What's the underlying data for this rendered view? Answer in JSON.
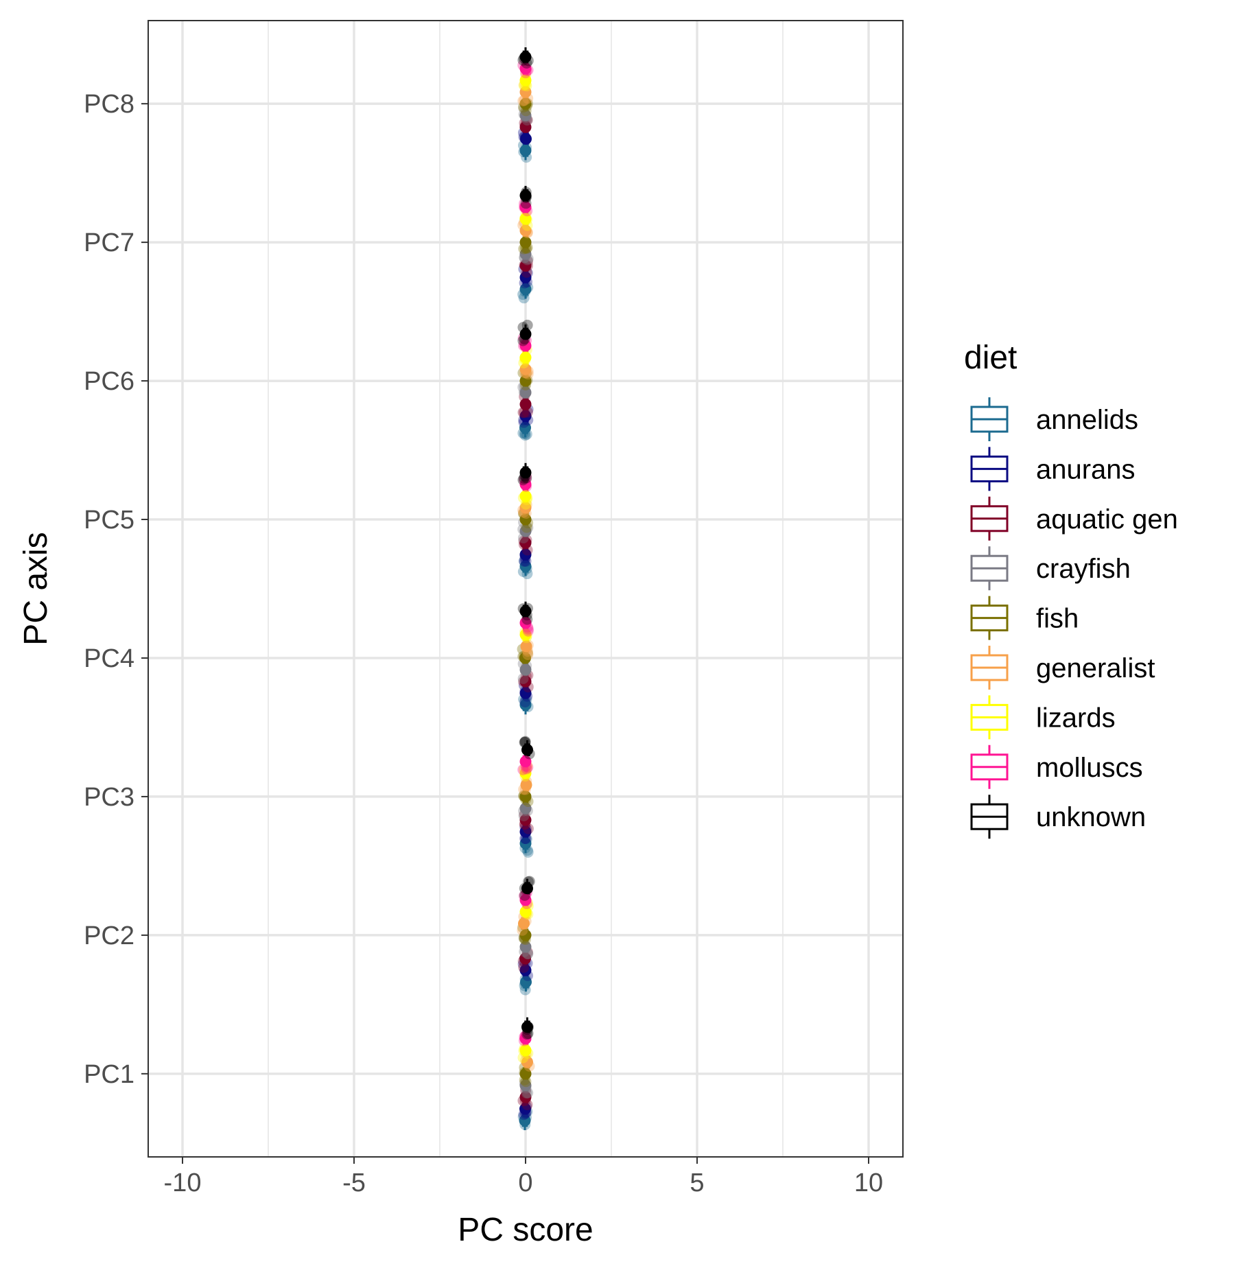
{
  "chart_data": {
    "type": "boxplot",
    "xlabel": "PC score",
    "ylabel": "PC axis",
    "xlim": [
      -11,
      11
    ],
    "xticks": [
      -10,
      -5,
      0,
      5,
      10
    ],
    "xtick_labels": [
      "-10",
      "-5",
      "0",
      "5",
      "10"
    ],
    "categories": [
      "PC1",
      "PC2",
      "PC3",
      "PC4",
      "PC5",
      "PC6",
      "PC7",
      "PC8"
    ],
    "grid": true,
    "legend": {
      "title": "diet",
      "placement": "right",
      "entries": [
        {
          "name": "annelids",
          "color": "#1b6a8f"
        },
        {
          "name": "anurans",
          "color": "#0a0a82"
        },
        {
          "name": "aquatic gen",
          "color": "#800026"
        },
        {
          "name": "crayfish",
          "color": "#7a7a84"
        },
        {
          "name": "fish",
          "color": "#7a7000"
        },
        {
          "name": "generalist",
          "color": "#f7a04a"
        },
        {
          "name": "lizards",
          "color": "#ffff00"
        },
        {
          "name": "molluscs",
          "color": "#ff1493"
        },
        {
          "name": "unknown",
          "color": "#000000"
        }
      ]
    },
    "series": [
      {
        "name": "annelids",
        "color": "#1b6a8f",
        "medians": [
          -0.02,
          0.01,
          0.0,
          0.0,
          0.0,
          -0.01,
          0.0,
          0.0
        ]
      },
      {
        "name": "anurans",
        "color": "#0a0a82",
        "medians": [
          -0.01,
          0.0,
          0.0,
          0.0,
          0.0,
          0.0,
          0.0,
          0.01
        ]
      },
      {
        "name": "aquatic gen",
        "color": "#800026",
        "medians": [
          0.0,
          -0.01,
          0.0,
          0.0,
          0.0,
          0.0,
          0.0,
          0.0
        ]
      },
      {
        "name": "crayfish",
        "color": "#7a7a84",
        "medians": [
          0.0,
          0.0,
          0.0,
          0.0,
          0.0,
          0.0,
          0.0,
          0.0
        ]
      },
      {
        "name": "fish",
        "color": "#7a7000",
        "medians": [
          0.0,
          0.0,
          0.0,
          -0.01,
          0.0,
          0.0,
          0.0,
          0.0
        ]
      },
      {
        "name": "generalist",
        "color": "#f7a04a",
        "medians": [
          0.05,
          -0.05,
          0.02,
          0.02,
          0.0,
          0.0,
          0.0,
          0.0
        ]
      },
      {
        "name": "lizards",
        "color": "#ffff00",
        "medians": [
          0.0,
          0.0,
          0.0,
          0.0,
          0.0,
          0.0,
          0.0,
          0.0
        ]
      },
      {
        "name": "molluscs",
        "color": "#ff1493",
        "medians": [
          0.0,
          0.0,
          0.0,
          0.0,
          0.0,
          0.0,
          0.0,
          0.0
        ]
      },
      {
        "name": "unknown",
        "color": "#000000",
        "medians": [
          0.05,
          0.05,
          0.05,
          0.0,
          0.0,
          0.0,
          0.0,
          0.0
        ]
      }
    ]
  }
}
